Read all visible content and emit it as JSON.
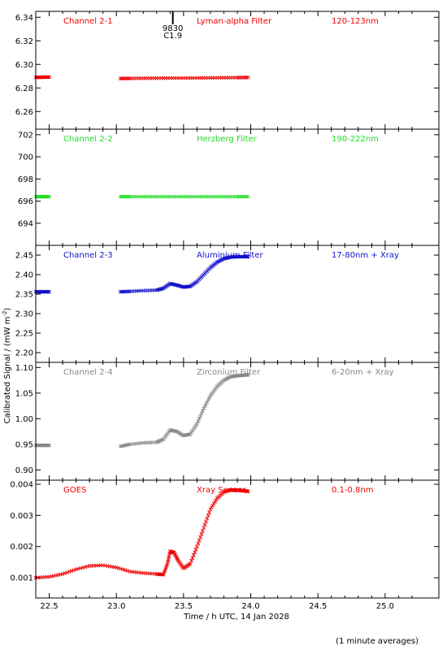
{
  "chart_data": {
    "type": "scatter",
    "shared_x": {
      "label": "Time / h UTC, 14 Jan 2028",
      "range": [
        22.4,
        25.4
      ],
      "ticks": [
        22.5,
        23.0,
        23.5,
        24.0,
        24.5,
        25.0
      ],
      "tick_labels": [
        "22.5",
        "23.0",
        "23.5",
        "24.0",
        "24.5",
        "25.0"
      ]
    },
    "y_axis_label": "Calibrated Signal / (mW m",
    "y_axis_label_sup": "-2",
    "y_axis_label_end": ")",
    "footnote": "(1 minute averages)",
    "event_marker": {
      "x": 23.42,
      "label_top": "9830",
      "label_bottom": "C1.9"
    },
    "panels": [
      {
        "channel": "Channel 2-1",
        "filter": "Lyman-alpha Filter",
        "band": "120-123nm",
        "color": "#ee0000",
        "ylim": [
          6.245,
          6.345
        ],
        "yticks": [
          6.26,
          6.28,
          6.3,
          6.32,
          6.34
        ],
        "ytick_labels": [
          "6.26",
          "6.28",
          "6.30",
          "6.32",
          "6.34"
        ],
        "series": [
          {
            "x": [
              22.4,
              22.45,
              22.5
            ],
            "y": [
              6.289,
              6.2891,
              6.2892
            ]
          },
          {
            "x": [
              23.03,
              23.1,
              23.2,
              23.3,
              23.4,
              23.5,
              23.6,
              23.7,
              23.8,
              23.9,
              23.98
            ],
            "y": [
              6.288,
              6.2881,
              6.2882,
              6.2883,
              6.2884,
              6.2884,
              6.2885,
              6.2886,
              6.2887,
              6.2888,
              6.2889
            ]
          }
        ]
      },
      {
        "channel": "Channel 2-2",
        "filter": "Herzberg Filter",
        "band": "190-222nm",
        "color": "#22dd22",
        "ylim": [
          692,
          702.5
        ],
        "yticks": [
          694,
          696,
          698,
          700,
          702
        ],
        "ytick_labels": [
          "694",
          "696",
          "698",
          "700",
          "702"
        ],
        "series": [
          {
            "x": [
              22.4,
              22.45,
              22.5
            ],
            "y": [
              696.4,
              696.4,
              696.4
            ]
          },
          {
            "x": [
              23.03,
              23.1,
              23.2,
              23.3,
              23.4,
              23.5,
              23.6,
              23.7,
              23.8,
              23.9,
              23.98
            ],
            "y": [
              696.4,
              696.4,
              696.4,
              696.4,
              696.4,
              696.4,
              696.4,
              696.4,
              696.4,
              696.4,
              696.4
            ]
          }
        ]
      },
      {
        "channel": "Channel 2-3",
        "filter": "Aluminium Filter",
        "band": "17-80nm + Xray",
        "color": "#1111cc",
        "ylim": [
          2.175,
          2.475
        ],
        "yticks": [
          2.2,
          2.25,
          2.3,
          2.35,
          2.4,
          2.45
        ],
        "ytick_labels": [
          "2.20",
          "2.25",
          "2.30",
          "2.35",
          "2.40",
          "2.45"
        ],
        "series": [
          {
            "x": [
              22.4,
              22.45,
              22.5
            ],
            "y": [
              2.356,
              2.356,
              2.356
            ]
          },
          {
            "x": [
              23.03,
              23.1,
              23.2,
              23.3,
              23.35,
              23.4,
              23.45,
              23.5,
              23.55,
              23.6,
              23.65,
              23.7,
              23.75,
              23.8,
              23.85,
              23.9,
              23.95,
              23.98
            ],
            "y": [
              2.356,
              2.357,
              2.359,
              2.36,
              2.365,
              2.377,
              2.373,
              2.368,
              2.37,
              2.382,
              2.4,
              2.418,
              2.432,
              2.441,
              2.445,
              2.446,
              2.446,
              2.446
            ]
          }
        ]
      },
      {
        "channel": "Channel 2-4",
        "filter": "Zirconium Filter",
        "band": "6-20nm + Xray",
        "color": "#888888",
        "ylim": [
          0.88,
          1.11
        ],
        "yticks": [
          0.9,
          0.95,
          1.0,
          1.05,
          1.1
        ],
        "ytick_labels": [
          "0.90",
          "0.95",
          "1.00",
          "1.05",
          "1.10"
        ],
        "series": [
          {
            "x": [
              22.4,
              22.45,
              22.5
            ],
            "y": [
              0.948,
              0.948,
              0.948
            ]
          },
          {
            "x": [
              23.03,
              23.1,
              23.2,
              23.3,
              23.35,
              23.4,
              23.45,
              23.5,
              23.55,
              23.6,
              23.65,
              23.7,
              23.75,
              23.8,
              23.85,
              23.9,
              23.95,
              23.98
            ],
            "y": [
              0.946,
              0.95,
              0.953,
              0.954,
              0.96,
              0.978,
              0.975,
              0.967,
              0.97,
              0.99,
              1.02,
              1.045,
              1.063,
              1.075,
              1.082,
              1.084,
              1.085,
              1.086
            ]
          }
        ]
      },
      {
        "channel": "GOES",
        "filter": "Xray Sensor",
        "band": "0.1-0.8nm",
        "color": "#ee0000",
        "ylim": [
          0.00035,
          0.00413
        ],
        "yticks": [
          0.001,
          0.002,
          0.003,
          0.004
        ],
        "ytick_labels": [
          "0.001",
          "0.002",
          "0.003",
          "0.004"
        ],
        "series": [
          {
            "x": [
              22.4,
              22.5,
              22.6,
              22.7,
              22.8,
              22.9,
              23.0,
              23.1,
              23.2,
              23.3,
              23.35,
              23.38,
              23.4,
              23.43,
              23.46,
              23.5,
              23.55,
              23.6,
              23.65,
              23.7,
              23.75,
              23.8,
              23.85,
              23.9,
              23.95,
              23.98
            ],
            "y": [
              0.001,
              0.00103,
              0.00112,
              0.00127,
              0.00138,
              0.0014,
              0.00133,
              0.0012,
              0.00115,
              0.00112,
              0.0011,
              0.00145,
              0.00185,
              0.0018,
              0.00155,
              0.0013,
              0.00145,
              0.002,
              0.0026,
              0.0032,
              0.00355,
              0.00375,
              0.00382,
              0.00381,
              0.00379,
              0.00377
            ]
          }
        ]
      }
    ]
  }
}
